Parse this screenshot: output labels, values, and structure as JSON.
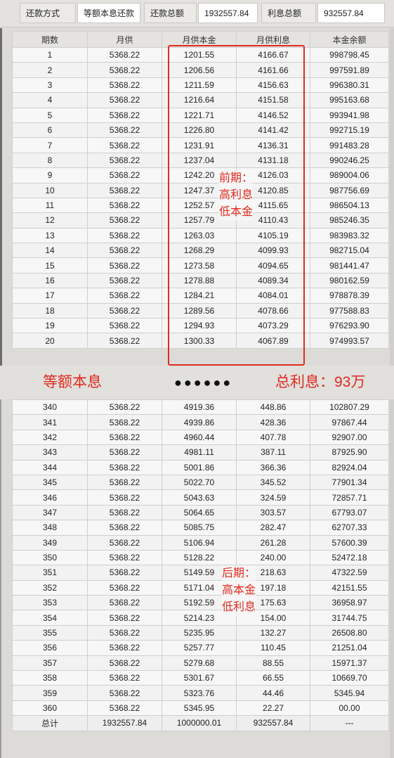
{
  "summary": {
    "method_label": "还款方式",
    "method_value": "等额本息还款",
    "total_label": "还款总额",
    "total_value": "1932557.84",
    "interest_label": "利息总额",
    "interest_value": "932557.84"
  },
  "table": {
    "headers": [
      "期数",
      "月供",
      "月供本金",
      "月供利息",
      "本金余额"
    ],
    "early_rows": [
      [
        "1",
        "5368.22",
        "1201.55",
        "4166.67",
        "998798.45"
      ],
      [
        "2",
        "5368.22",
        "1206.56",
        "4161.66",
        "997591.89"
      ],
      [
        "3",
        "5368.22",
        "1211.59",
        "4156.63",
        "996380.31"
      ],
      [
        "4",
        "5368.22",
        "1216.64",
        "4151.58",
        "995163.68"
      ],
      [
        "5",
        "5368.22",
        "1221.71",
        "4146.52",
        "993941.98"
      ],
      [
        "6",
        "5368.22",
        "1226.80",
        "4141.42",
        "992715.19"
      ],
      [
        "7",
        "5368.22",
        "1231.91",
        "4136.31",
        "991483.28"
      ],
      [
        "8",
        "5368.22",
        "1237.04",
        "4131.18",
        "990246.25"
      ],
      [
        "9",
        "5368.22",
        "1242.20",
        "4126.03",
        "989004.06"
      ],
      [
        "10",
        "5368.22",
        "1247.37",
        "4120.85",
        "987756.69"
      ],
      [
        "11",
        "5368.22",
        "1252.57",
        "4115.65",
        "986504.13"
      ],
      [
        "12",
        "5368.22",
        "1257.79",
        "4110.43",
        "985246.35"
      ],
      [
        "13",
        "5368.22",
        "1263.03",
        "4105.19",
        "983983.32"
      ],
      [
        "14",
        "5368.22",
        "1268.29",
        "4099.93",
        "982715.04"
      ],
      [
        "15",
        "5368.22",
        "1273.58",
        "4094.65",
        "981441.47"
      ],
      [
        "16",
        "5368.22",
        "1278.88",
        "4089.34",
        "980162.59"
      ],
      [
        "17",
        "5368.22",
        "1284.21",
        "4084.01",
        "978878.39"
      ],
      [
        "18",
        "5368.22",
        "1289.56",
        "4078.66",
        "977588.83"
      ],
      [
        "19",
        "5368.22",
        "1294.93",
        "4073.29",
        "976293.90"
      ],
      [
        "20",
        "5368.22",
        "1300.33",
        "4067.89",
        "974993.57"
      ]
    ],
    "late_rows": [
      [
        "340",
        "5368.22",
        "4919.36",
        "448.86",
        "102807.29"
      ],
      [
        "341",
        "5368.22",
        "4939.86",
        "428.36",
        "97867.44"
      ],
      [
        "342",
        "5368.22",
        "4960.44",
        "407.78",
        "92907.00"
      ],
      [
        "343",
        "5368.22",
        "4981.11",
        "387.11",
        "87925.90"
      ],
      [
        "344",
        "5368.22",
        "5001.86",
        "366.36",
        "82924.04"
      ],
      [
        "345",
        "5368.22",
        "5022.70",
        "345.52",
        "77901.34"
      ],
      [
        "346",
        "5368.22",
        "5043.63",
        "324.59",
        "72857.71"
      ],
      [
        "347",
        "5368.22",
        "5064.65",
        "303.57",
        "67793.07"
      ],
      [
        "348",
        "5368.22",
        "5085.75",
        "282.47",
        "62707.33"
      ],
      [
        "349",
        "5368.22",
        "5106.94",
        "261.28",
        "57600.39"
      ],
      [
        "350",
        "5368.22",
        "5128.22",
        "240.00",
        "52472.18"
      ],
      [
        "351",
        "5368.22",
        "5149.59",
        "218.63",
        "47322.59"
      ],
      [
        "352",
        "5368.22",
        "5171.04",
        "197.18",
        "42151.55"
      ],
      [
        "353",
        "5368.22",
        "5192.59",
        "175.63",
        "36958.97"
      ],
      [
        "354",
        "5368.22",
        "5214.23",
        "154.00",
        "31744.75"
      ],
      [
        "355",
        "5368.22",
        "5235.95",
        "132.27",
        "26508.80"
      ],
      [
        "356",
        "5368.22",
        "5257.77",
        "110.45",
        "21251.04"
      ],
      [
        "357",
        "5368.22",
        "5279.68",
        "88.55",
        "15971.37"
      ],
      [
        "358",
        "5368.22",
        "5301.67",
        "66.55",
        "10669.70"
      ],
      [
        "359",
        "5368.22",
        "5323.76",
        "44.46",
        "5345.94"
      ],
      [
        "360",
        "5368.22",
        "5345.95",
        "22.27",
        "00.00"
      ]
    ],
    "total_row": [
      "总计",
      "1932557.84",
      "1000000.01",
      "932557.84",
      "---"
    ]
  },
  "annotations": {
    "early_lines": [
      "前期：",
      "高利息",
      "低本金"
    ],
    "late_lines": [
      "后期：",
      "高本金",
      "低利息"
    ]
  },
  "banner": {
    "left": "等额本息",
    "dots": "●●●●●●",
    "right": "总利息：93万"
  },
  "colors": {
    "accent": "#e02a1f"
  }
}
